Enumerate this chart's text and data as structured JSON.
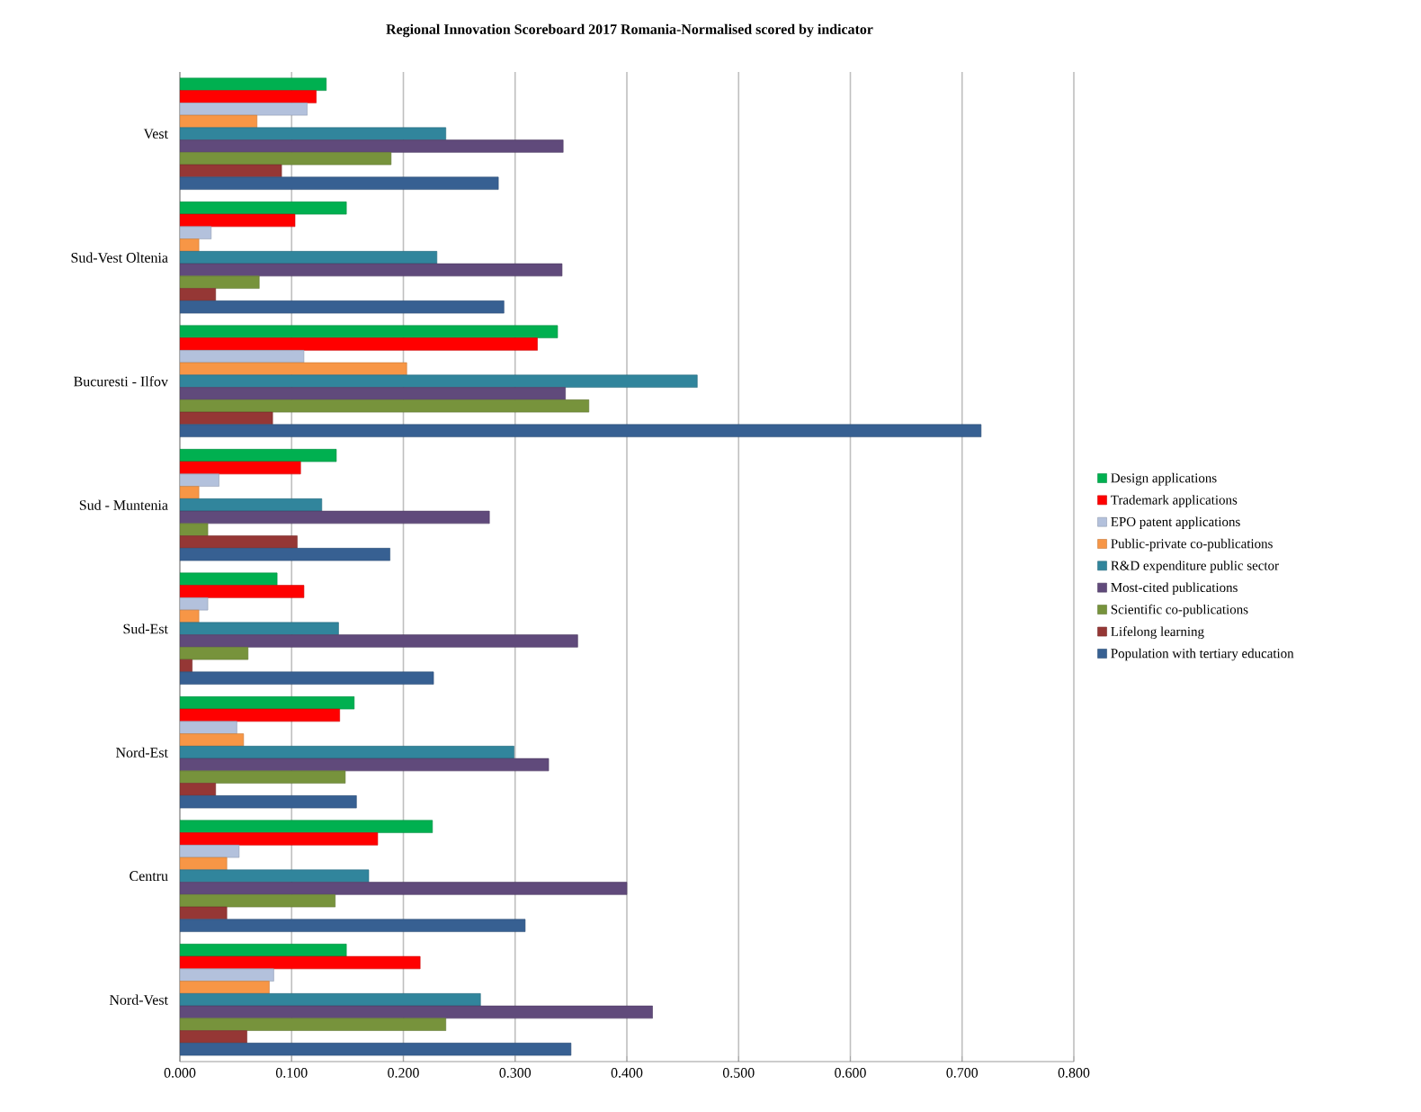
{
  "chart_data": {
    "type": "bar",
    "orientation": "horizontal",
    "title": "Regional Innovation Scoreboard 2017 Romania-Normalised scored by indicator",
    "categories": [
      "Vest",
      "Sud-Vest Oltenia",
      "Bucuresti - Ilfov",
      "Sud - Muntenia",
      "Sud-Est",
      "Nord-Est",
      "Centru",
      "Nord-Vest"
    ],
    "series": [
      {
        "name": "Design applications",
        "color": "#00b050",
        "values": [
          0.131,
          0.149,
          0.338,
          0.14,
          0.087,
          0.156,
          0.226,
          0.149
        ]
      },
      {
        "name": "Trademark applications",
        "color": "#ff0000",
        "values": [
          0.122,
          0.103,
          0.32,
          0.108,
          0.111,
          0.143,
          0.177,
          0.215
        ]
      },
      {
        "name": "EPO patent applications",
        "color": "#b3c1dc",
        "values": [
          0.114,
          0.028,
          0.111,
          0.035,
          0.025,
          0.051,
          0.053,
          0.084
        ]
      },
      {
        "name": "Public-private co-publications",
        "color": "#f79646",
        "values": [
          0.069,
          0.017,
          0.203,
          0.017,
          0.017,
          0.057,
          0.042,
          0.08
        ]
      },
      {
        "name": "R&D expenditure public sector",
        "color": "#31859c",
        "values": [
          0.238,
          0.23,
          0.463,
          0.127,
          0.142,
          0.299,
          0.169,
          0.269
        ]
      },
      {
        "name": "Most-cited publications",
        "color": "#604a7b",
        "values": [
          0.343,
          0.342,
          0.345,
          0.277,
          0.356,
          0.33,
          0.4,
          0.423
        ]
      },
      {
        "name": "Scientific co-publications",
        "color": "#77933c",
        "values": [
          0.189,
          0.071,
          0.366,
          0.025,
          0.061,
          0.148,
          0.139,
          0.238
        ]
      },
      {
        "name": "Lifelong learning",
        "color": "#953735",
        "values": [
          0.091,
          0.032,
          0.083,
          0.105,
          0.011,
          0.032,
          0.042,
          0.06
        ]
      },
      {
        "name": "Population with tertiary education",
        "color": "#376092",
        "values": [
          0.285,
          0.29,
          0.717,
          0.188,
          0.227,
          0.158,
          0.309,
          0.35
        ]
      }
    ],
    "xlim": [
      0,
      0.8
    ],
    "xticks": [
      {
        "value": 0,
        "label": "0.000"
      },
      {
        "value": 0.1,
        "label": "0.100"
      },
      {
        "value": 0.2,
        "label": "0.200"
      },
      {
        "value": 0.3,
        "label": "0.300"
      },
      {
        "value": 0.4,
        "label": "0.400"
      },
      {
        "value": 0.5,
        "label": "0.500"
      },
      {
        "value": 0.6,
        "label": "0.600"
      },
      {
        "value": 0.7,
        "label": "0.700"
      },
      {
        "value": 0.8,
        "label": "0.800"
      }
    ],
    "grid": "x",
    "legend": "right"
  }
}
